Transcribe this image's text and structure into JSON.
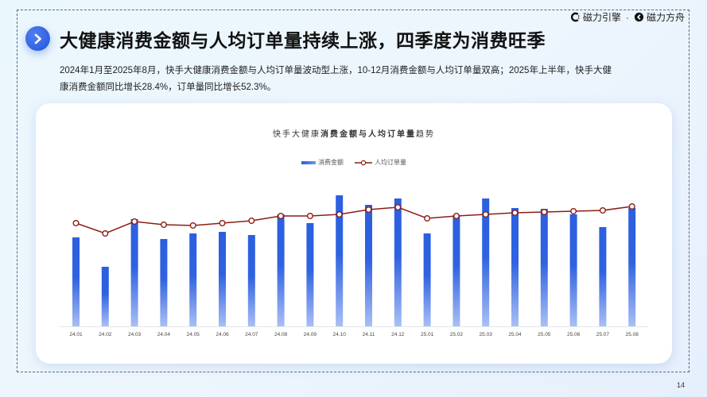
{
  "header": {
    "title": "大健康消费金额与人均订单量持续上涨，四季度为消费旺季",
    "subtitle": "2024年1月至2025年8月，快手大健康消费金额与人均订单量波动型上涨，10-12月消费金额与人均订单量双高；2025年上半年，快手大健康消费金额同比增长28.4%，订单量同比增长52.3%。",
    "badge_icon": "chevron-right-icon"
  },
  "logo": {
    "brand1": "磁力引擎",
    "separator": "·",
    "brand2": "磁力方舟"
  },
  "page_number": "14",
  "colors": {
    "bar": "#2b5fe0",
    "bar_light": "#a9bff5",
    "line": "#8b1e14",
    "accent": "#2e5ce0"
  },
  "chart_data": {
    "type": "bar",
    "title_prefix": "快手大健康",
    "title_bold": "消费金额与人均订单量",
    "title_suffix": "趋势",
    "title": "快手大健康消费金额与人均订单量趋势",
    "xlabel": "",
    "ylabel": "",
    "grid": false,
    "legend_position": "top",
    "axis_values_hidden": true,
    "categories": [
      "24.01",
      "24.02",
      "24.03",
      "24.04",
      "24.05",
      "24.06",
      "24.07",
      "24.08",
      "24.09",
      "24.10",
      "24.11",
      "24.12",
      "25.01",
      "25.02",
      "25.03",
      "25.04",
      "25.05",
      "25.06",
      "25.07",
      "25.08"
    ],
    "series": [
      {
        "name": "消费金额",
        "type": "bar",
        "values": [
          112,
          75,
          135,
          110,
          117,
          119,
          115,
          141,
          130,
          165,
          153,
          161,
          117,
          140,
          161,
          149,
          148,
          141,
          125,
          149
        ],
        "note": "relative heights in pixels from baseline (no y-axis shown)"
      },
      {
        "name": "人均订单量",
        "type": "line",
        "values": [
          130,
          117,
          132,
          128,
          127,
          130,
          133,
          139,
          139,
          141,
          147,
          150,
          136,
          139,
          141,
          143,
          144,
          145,
          146,
          151
        ],
        "note": "relative positions in pixels from baseline (no y-axis shown)"
      }
    ]
  }
}
